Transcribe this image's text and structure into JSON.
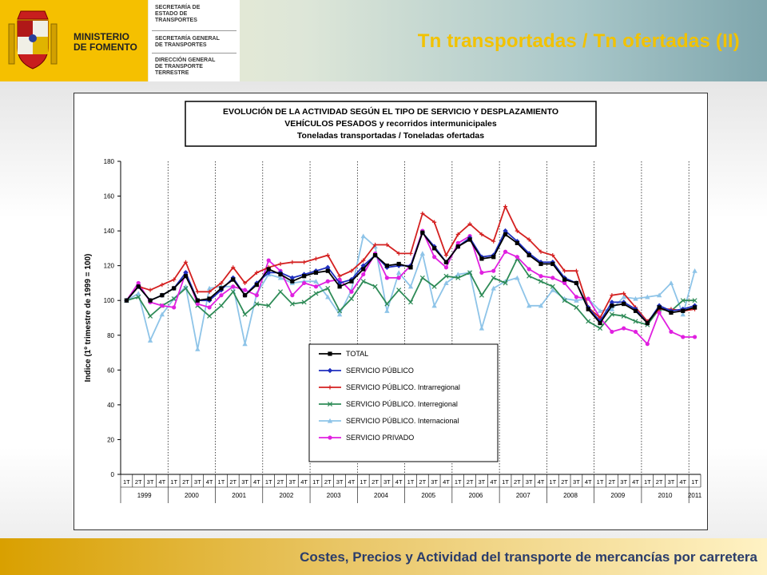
{
  "header": {
    "ministry_line1": "MINISTERIO",
    "ministry_line2": "DE FOMENTO",
    "dept1": [
      "SECRETARÍA DE",
      "ESTADO DE",
      "TRANSPORTES"
    ],
    "dept2": [
      "SECRETARÍA GENERAL",
      "DE TRANSPORTES"
    ],
    "dept3": [
      "DIRECCIÓN GENERAL",
      "DE TRANSPORTE",
      "TERRESTRE"
    ],
    "page_title": "Tn transportadas / Tn ofertadas (II)"
  },
  "footer": {
    "text": "Costes, Precios y Actividad del transporte de mercancías por carretera"
  },
  "colors": {
    "gold": "#f5c000",
    "title": "#f2c200",
    "footer_text": "#2b3d6b"
  },
  "chart_data": {
    "type": "line",
    "title_lines": [
      "EVOLUCIÓN DE LA ACTIVIDAD SEGÚN EL TIPO DE SERVICIO Y DESPLAZAMIENTO",
      "VEHÍCULOS PESADOS y recorridos intermunicipales",
      "Toneladas transportadas / Toneladas ofertadas"
    ],
    "ylabel": "Indice (1º trimestre de 1999 = 100)",
    "ylim": [
      0,
      180
    ],
    "yticks": [
      0,
      20,
      40,
      60,
      80,
      100,
      120,
      140,
      160,
      180
    ],
    "grid": "vertical dotted at year boundaries",
    "quarter_labels": [
      "1T",
      "2T",
      "3T",
      "4T",
      "1T",
      "2T",
      "3T",
      "4T",
      "1T",
      "2T",
      "3T",
      "4T",
      "1T",
      "2T",
      "3T",
      "4T",
      "1T",
      "2T",
      "3T",
      "4T",
      "1T",
      "2T",
      "3T",
      "4T",
      "1T",
      "2T",
      "3T",
      "4T",
      "1T",
      "2T",
      "3T",
      "4T",
      "1T",
      "2T",
      "3T",
      "4T",
      "1T",
      "2T",
      "3T",
      "4T",
      "1T",
      "2T",
      "3T",
      "4T",
      "1T",
      "2T",
      "3T",
      "4T",
      "1T"
    ],
    "years": [
      "1999",
      "2000",
      "2001",
      "2002",
      "2003",
      "2004",
      "2005",
      "2006",
      "2007",
      "2008",
      "2009",
      "2010",
      "2011"
    ],
    "legend_position": "inside lower-center",
    "series": [
      {
        "name": "TOTAL",
        "color": "#000000",
        "marker": "square",
        "values": [
          100,
          108,
          100,
          103,
          107,
          114,
          100,
          101,
          107,
          112,
          103,
          109,
          118,
          115,
          111,
          114,
          116,
          117,
          108,
          111,
          118,
          126,
          120,
          121,
          119,
          139,
          130,
          122,
          131,
          135,
          124,
          125,
          138,
          133,
          126,
          121,
          121,
          112,
          110,
          95,
          87,
          97,
          98,
          94,
          87,
          96,
          93,
          94,
          96
        ]
      },
      {
        "name": "SERVICIO PÚBLICO",
        "color": "#1f2fbf",
        "marker": "diamond",
        "values": [
          100,
          108,
          100,
          103,
          107,
          116,
          100,
          100,
          106,
          113,
          103,
          110,
          116,
          116,
          113,
          115,
          117,
          119,
          110,
          112,
          120,
          126,
          119,
          120,
          120,
          139,
          131,
          122,
          131,
          136,
          125,
          126,
          140,
          134,
          127,
          122,
          122,
          113,
          110,
          96,
          88,
          99,
          99,
          95,
          87,
          97,
          94,
          95,
          97
        ]
      },
      {
        "name": "SERVICIO PÚBLICO. Intrarregional",
        "color": "#d42020",
        "marker": "plus",
        "values": [
          100,
          108,
          106,
          109,
          112,
          122,
          105,
          105,
          110,
          119,
          110,
          116,
          119,
          121,
          122,
          122,
          124,
          126,
          114,
          117,
          123,
          132,
          132,
          127,
          127,
          150,
          145,
          126,
          138,
          144,
          138,
          134,
          154,
          140,
          135,
          128,
          126,
          117,
          117,
          96,
          90,
          103,
          104,
          96,
          88,
          95,
          95,
          94,
          95
        ]
      },
      {
        "name": "SERVICIO PÚBLICO. Interregional",
        "color": "#2e8b57",
        "marker": "x",
        "values": [
          100,
          102,
          91,
          97,
          101,
          107,
          97,
          91,
          97,
          105,
          92,
          98,
          97,
          105,
          98,
          99,
          104,
          107,
          94,
          101,
          111,
          108,
          98,
          106,
          99,
          113,
          108,
          114,
          113,
          116,
          103,
          113,
          110,
          124,
          114,
          111,
          108,
          100,
          96,
          88,
          84,
          92,
          91,
          88,
          86,
          95,
          94,
          100,
          100
        ]
      },
      {
        "name": "SERVICIO PÚBLICO. Internacional",
        "color": "#8ec4e8",
        "marker": "triangle",
        "values": [
          100,
          104,
          77,
          92,
          101,
          108,
          72,
          107,
          108,
          108,
          75,
          104,
          115,
          113,
          110,
          111,
          111,
          102,
          92,
          106,
          137,
          131,
          94,
          116,
          108,
          127,
          97,
          110,
          115,
          116,
          84,
          107,
          111,
          113,
          97,
          97,
          106,
          101,
          100,
          101,
          94,
          95,
          102,
          101,
          102,
          103,
          110,
          92,
          117
        ]
      },
      {
        "name": "SERVICIO PRIVADO",
        "color": "#e020e0",
        "marker": "circle",
        "values": [
          100,
          110,
          99,
          97,
          96,
          116,
          98,
          96,
          103,
          108,
          106,
          103,
          123,
          117,
          103,
          110,
          108,
          111,
          112,
          105,
          115,
          127,
          113,
          113,
          120,
          140,
          125,
          119,
          133,
          137,
          116,
          117,
          128,
          125,
          118,
          114,
          113,
          110,
          102,
          101,
          90,
          82,
          84,
          82,
          75,
          93,
          82,
          79,
          79
        ]
      }
    ]
  }
}
